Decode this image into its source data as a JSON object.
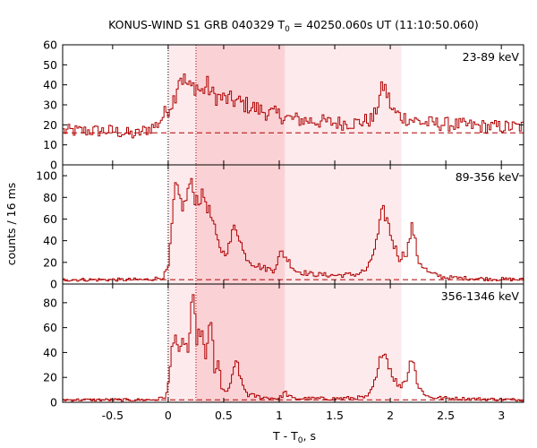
{
  "title": {
    "prefix": "KONUS-WIND S1 GRB 040329 T",
    "sub": "0",
    "suffix": " = 40250.060s UT (11:10:50.060)"
  },
  "ylabel": "counts / 16 ms",
  "xlabel": {
    "prefix": "T - T",
    "sub": "0",
    "suffix": ", s"
  },
  "colors": {
    "curve": "#b00000",
    "shade_dark": "#fad2d6",
    "shade_light": "#fdeaec",
    "background_line": "#b00000"
  },
  "chart_data": {
    "type": "line",
    "style": "histogram-step",
    "xlim": [
      -0.95,
      3.2
    ],
    "xticks": [
      -0.5,
      0,
      0.5,
      1,
      1.5,
      2,
      2.5,
      3
    ],
    "xtick_labels": [
      "-0.5",
      "0",
      "0.5",
      "1",
      "1.5",
      "2",
      "2.5",
      "3"
    ],
    "bin_width_s": 0.016,
    "shaded_intervals": [
      {
        "x": [
          0.0,
          2.1
        ],
        "shade": "light"
      },
      {
        "x": [
          0.25,
          1.05
        ],
        "shade": "dark"
      }
    ],
    "vertical_lines": [
      0.0,
      0.25
    ],
    "panels": [
      {
        "label": "23-89 keV",
        "ylim": [
          0,
          60
        ],
        "yticks": [
          0,
          10,
          20,
          30,
          40,
          50,
          60
        ],
        "background": 16,
        "series": [
          [
            -0.95,
            17
          ],
          [
            -0.5,
            17
          ],
          [
            -0.3,
            15
          ],
          [
            -0.1,
            20
          ],
          [
            0.0,
            28
          ],
          [
            0.06,
            34
          ],
          [
            0.1,
            45
          ],
          [
            0.15,
            42
          ],
          [
            0.2,
            38
          ],
          [
            0.25,
            40
          ],
          [
            0.3,
            36
          ],
          [
            0.35,
            40
          ],
          [
            0.4,
            35
          ],
          [
            0.5,
            33
          ],
          [
            0.6,
            32
          ],
          [
            0.7,
            30
          ],
          [
            0.8,
            28
          ],
          [
            0.9,
            26
          ],
          [
            1.0,
            25
          ],
          [
            1.1,
            23
          ],
          [
            1.3,
            22
          ],
          [
            1.5,
            21
          ],
          [
            1.7,
            21
          ],
          [
            1.85,
            23
          ],
          [
            1.9,
            33
          ],
          [
            1.94,
            40
          ],
          [
            1.98,
            34
          ],
          [
            2.02,
            27
          ],
          [
            2.1,
            24
          ],
          [
            2.3,
            21
          ],
          [
            2.6,
            20
          ],
          [
            2.9,
            19
          ],
          [
            3.2,
            19
          ]
        ]
      },
      {
        "label": "89-356 keV",
        "ylim": [
          0,
          110
        ],
        "yticks": [
          0,
          20,
          40,
          60,
          80,
          100
        ],
        "background": 4,
        "series": [
          [
            -0.95,
            4
          ],
          [
            -0.2,
            4
          ],
          [
            -0.05,
            6
          ],
          [
            0.0,
            14
          ],
          [
            0.02,
            35
          ],
          [
            0.04,
            60
          ],
          [
            0.06,
            90
          ],
          [
            0.1,
            80
          ],
          [
            0.14,
            70
          ],
          [
            0.2,
            95
          ],
          [
            0.24,
            80
          ],
          [
            0.28,
            78
          ],
          [
            0.32,
            82
          ],
          [
            0.36,
            70
          ],
          [
            0.4,
            58
          ],
          [
            0.44,
            40
          ],
          [
            0.5,
            28
          ],
          [
            0.55,
            35
          ],
          [
            0.6,
            55
          ],
          [
            0.64,
            45
          ],
          [
            0.68,
            28
          ],
          [
            0.75,
            20
          ],
          [
            0.85,
            15
          ],
          [
            0.95,
            13
          ],
          [
            1.02,
            30
          ],
          [
            1.08,
            22
          ],
          [
            1.15,
            12
          ],
          [
            1.3,
            9
          ],
          [
            1.5,
            8
          ],
          [
            1.7,
            9
          ],
          [
            1.8,
            14
          ],
          [
            1.88,
            40
          ],
          [
            1.93,
            68
          ],
          [
            1.97,
            60
          ],
          [
            2.02,
            40
          ],
          [
            2.08,
            24
          ],
          [
            2.15,
            30
          ],
          [
            2.2,
            55
          ],
          [
            2.25,
            22
          ],
          [
            2.35,
            10
          ],
          [
            2.5,
            6
          ],
          [
            2.8,
            5
          ],
          [
            3.2,
            4
          ]
        ]
      },
      {
        "label": "356-1346 keV",
        "ylim": [
          0,
          95
        ],
        "yticks": [
          0,
          20,
          40,
          60,
          80
        ],
        "background": 2,
        "series": [
          [
            -0.95,
            2
          ],
          [
            -0.1,
            2
          ],
          [
            -0.02,
            5
          ],
          [
            0.0,
            12
          ],
          [
            0.03,
            40
          ],
          [
            0.06,
            60
          ],
          [
            0.1,
            35
          ],
          [
            0.14,
            52
          ],
          [
            0.18,
            40
          ],
          [
            0.22,
            85
          ],
          [
            0.26,
            50
          ],
          [
            0.3,
            60
          ],
          [
            0.34,
            30
          ],
          [
            0.38,
            75
          ],
          [
            0.42,
            20
          ],
          [
            0.46,
            35
          ],
          [
            0.48,
            12
          ],
          [
            0.52,
            6
          ],
          [
            0.58,
            20
          ],
          [
            0.62,
            35
          ],
          [
            0.66,
            15
          ],
          [
            0.72,
            6
          ],
          [
            0.85,
            4
          ],
          [
            1.0,
            3
          ],
          [
            1.05,
            8
          ],
          [
            1.12,
            3
          ],
          [
            1.5,
            3
          ],
          [
            1.8,
            4
          ],
          [
            1.88,
            20
          ],
          [
            1.93,
            45
          ],
          [
            1.97,
            35
          ],
          [
            2.02,
            22
          ],
          [
            2.08,
            12
          ],
          [
            2.15,
            20
          ],
          [
            2.2,
            40
          ],
          [
            2.25,
            12
          ],
          [
            2.35,
            4
          ],
          [
            2.6,
            3
          ],
          [
            3.2,
            2
          ]
        ]
      }
    ]
  }
}
